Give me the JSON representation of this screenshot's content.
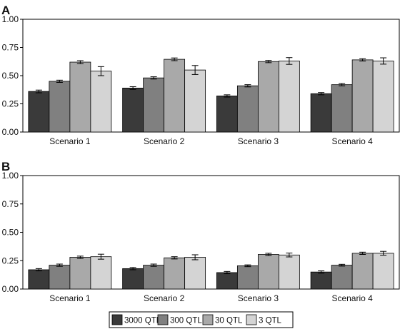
{
  "chart_data": [
    {
      "type": "bar",
      "panel": "A",
      "categories": [
        "Scenario 1",
        "Scenario 2",
        "Scenario 3",
        "Scenario 4"
      ],
      "ylim": [
        0,
        1
      ],
      "yticks": [
        "0.00",
        "0.25",
        "0.50",
        "0.75",
        "1.00"
      ],
      "series": [
        {
          "name": "3000 QTL",
          "values": [
            0.36,
            0.39,
            0.32,
            0.34
          ],
          "errors": [
            0.012,
            0.012,
            0.01,
            0.01
          ]
        },
        {
          "name": "300 QTL",
          "values": [
            0.45,
            0.48,
            0.41,
            0.42
          ],
          "errors": [
            0.01,
            0.01,
            0.01,
            0.01
          ]
        },
        {
          "name": "30 QTL",
          "values": [
            0.62,
            0.645,
            0.625,
            0.64
          ],
          "errors": [
            0.013,
            0.012,
            0.01,
            0.01
          ]
        },
        {
          "name": "3 QTL",
          "values": [
            0.54,
            0.55,
            0.63,
            0.63
          ],
          "errors": [
            0.04,
            0.04,
            0.03,
            0.028
          ]
        }
      ]
    },
    {
      "type": "bar",
      "panel": "B",
      "categories": [
        "Scenario 1",
        "Scenario 2",
        "Scenario 3",
        "Scenario 4"
      ],
      "ylim": [
        0,
        1
      ],
      "yticks": [
        "0.00",
        "0.25",
        "0.50",
        "0.75",
        "1.00"
      ],
      "series": [
        {
          "name": "3000 QTL",
          "values": [
            0.17,
            0.18,
            0.145,
            0.15
          ],
          "errors": [
            0.01,
            0.01,
            0.01,
            0.01
          ]
        },
        {
          "name": "300 QTL",
          "values": [
            0.21,
            0.21,
            0.205,
            0.21
          ],
          "errors": [
            0.01,
            0.01,
            0.008,
            0.008
          ]
        },
        {
          "name": "30 QTL",
          "values": [
            0.28,
            0.275,
            0.305,
            0.315
          ],
          "errors": [
            0.01,
            0.01,
            0.01,
            0.01
          ]
        },
        {
          "name": "3 QTL",
          "values": [
            0.285,
            0.28,
            0.3,
            0.315
          ],
          "errors": [
            0.022,
            0.022,
            0.017,
            0.017
          ]
        }
      ]
    }
  ],
  "legend": {
    "placement": "bottom-center",
    "items": [
      "3000 QTL",
      "300 QTL",
      "30 QTL",
      "3 QTL"
    ]
  },
  "colors": {
    "3000 QTL": "#3a3a3a",
    "300 QTL": "#808080",
    "30 QTL": "#a9a9a9",
    "3 QTL": "#d4d4d4",
    "axis": "#000000",
    "bar_stroke": "#000000"
  }
}
